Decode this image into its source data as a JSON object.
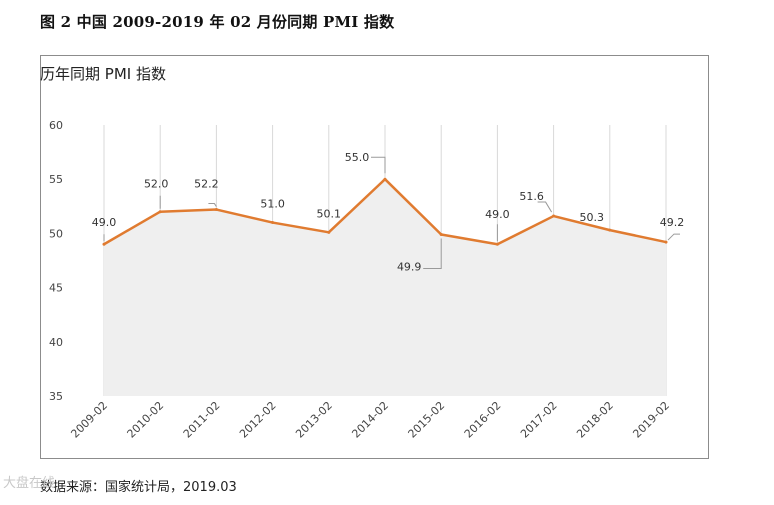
{
  "figure_title": "图 2  中国 2009-2019 年 02 月份同期 PMI 指数",
  "source": "数据来源：国家统计局，2019.03",
  "watermark": "大盘在线",
  "chart_data": {
    "type": "line",
    "title": "历年同期 PMI 指数",
    "xlabel": "",
    "ylabel": "",
    "categories": [
      "2009-02",
      "2010-02",
      "2011-02",
      "2012-02",
      "2013-02",
      "2014-02",
      "2015-02",
      "2016-02",
      "2017-02",
      "2018-02",
      "2019-02"
    ],
    "series": [
      {
        "name": "PMI",
        "values": [
          49.0,
          52.0,
          52.2,
          51.0,
          50.1,
          55.0,
          49.9,
          49.0,
          51.6,
          50.3,
          49.2
        ]
      }
    ],
    "data_labels": [
      "49.0",
      "52.0",
      "52.2",
      "51.0",
      "50.1",
      "55.0",
      "49.9",
      "49.0",
      "51.6",
      "50.3",
      "49.2"
    ],
    "ylim": [
      35,
      60
    ],
    "yticks": [
      35,
      40,
      45,
      50,
      55,
      60
    ],
    "grid": "vertical",
    "line_color": "#E07B30",
    "area_color": "#EFEFEF",
    "grid_color": "#D9D9D9"
  }
}
